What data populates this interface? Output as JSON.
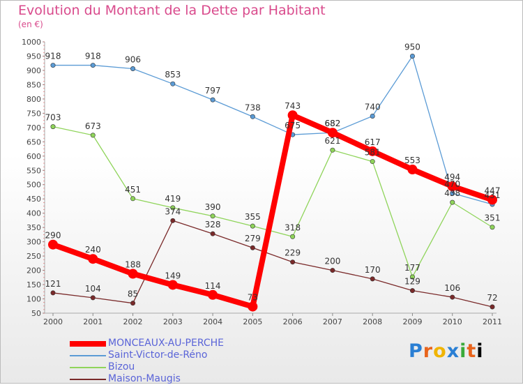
{
  "header": {
    "title": "Evolution du Montant de la Dette par Habitant",
    "subtitle": "(en €)"
  },
  "logo": {
    "letters": [
      "P",
      "r",
      "o",
      "x",
      "i",
      "t",
      "i"
    ]
  },
  "chart_data": {
    "type": "line",
    "x": [
      "2000",
      "2001",
      "2002",
      "2003",
      "2004",
      "2005",
      "2006",
      "2007",
      "2008",
      "2009",
      "2010",
      "2011"
    ],
    "ylim": [
      50,
      1000
    ],
    "yticks": [
      50,
      100,
      150,
      200,
      250,
      300,
      350,
      400,
      450,
      500,
      550,
      600,
      650,
      700,
      750,
      800,
      850,
      900,
      950,
      1000
    ],
    "grid": false,
    "legend_position": "bottom-left",
    "series": [
      {
        "name": "MONCEAUX-AU-PERCHE",
        "color": "#ff0000",
        "values": [
          290,
          240,
          188,
          149,
          114,
          73,
          743,
          682,
          617,
          553,
          494,
          447
        ]
      },
      {
        "name": "Saint-Victor-de-Réno",
        "color": "#5b9bd5",
        "values": [
          918,
          918,
          906,
          853,
          797,
          738,
          675,
          682,
          740,
          950,
          470,
          431
        ]
      },
      {
        "name": "Bizou",
        "color": "#8fd45a",
        "values": [
          703,
          673,
          451,
          419,
          390,
          355,
          318,
          621,
          581,
          177,
          438,
          351
        ]
      },
      {
        "name": "Maison-Maugis",
        "color": "#7a2a2a",
        "values": [
          121,
          104,
          85,
          374,
          328,
          279,
          229,
          200,
          170,
          129,
          106,
          72
        ]
      }
    ]
  }
}
